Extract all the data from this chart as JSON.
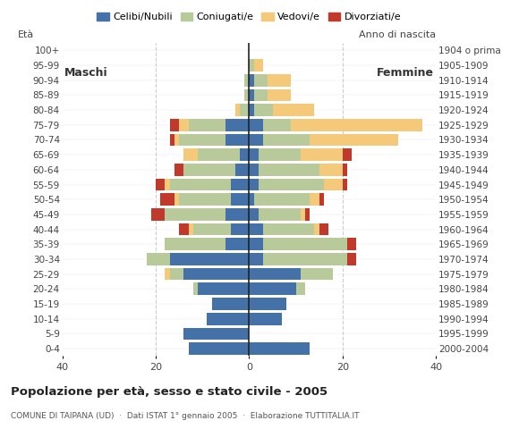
{
  "age_groups": [
    "0-4",
    "5-9",
    "10-14",
    "15-19",
    "20-24",
    "25-29",
    "30-34",
    "35-39",
    "40-44",
    "45-49",
    "50-54",
    "55-59",
    "60-64",
    "65-69",
    "70-74",
    "75-79",
    "80-84",
    "85-89",
    "90-94",
    "95-99",
    "100+"
  ],
  "birth_years": [
    "2000-2004",
    "1995-1999",
    "1990-1994",
    "1985-1989",
    "1980-1984",
    "1975-1979",
    "1970-1974",
    "1965-1969",
    "1960-1964",
    "1955-1959",
    "1950-1954",
    "1945-1949",
    "1940-1944",
    "1935-1939",
    "1930-1934",
    "1925-1929",
    "1920-1924",
    "1915-1919",
    "1910-1914",
    "1905-1909",
    "1904 o prima"
  ],
  "males": {
    "celibi": [
      13,
      14,
      9,
      8,
      11,
      14,
      17,
      5,
      4,
      5,
      4,
      4,
      3,
      2,
      5,
      5,
      0,
      0,
      0,
      0,
      0
    ],
    "coniugati": [
      0,
      0,
      0,
      0,
      1,
      3,
      5,
      13,
      8,
      13,
      11,
      13,
      11,
      9,
      10,
      8,
      2,
      1,
      1,
      0,
      0
    ],
    "vedovi": [
      0,
      0,
      0,
      0,
      0,
      1,
      0,
      0,
      1,
      0,
      1,
      1,
      0,
      3,
      1,
      2,
      1,
      0,
      0,
      0,
      0
    ],
    "divorziati": [
      0,
      0,
      0,
      0,
      0,
      0,
      0,
      0,
      2,
      3,
      3,
      2,
      2,
      0,
      1,
      2,
      0,
      0,
      0,
      0,
      0
    ]
  },
  "females": {
    "nubili": [
      13,
      0,
      7,
      8,
      10,
      11,
      3,
      3,
      3,
      2,
      1,
      2,
      2,
      2,
      3,
      3,
      1,
      1,
      1,
      0,
      0
    ],
    "coniugate": [
      0,
      0,
      0,
      0,
      2,
      7,
      18,
      18,
      11,
      9,
      12,
      14,
      13,
      9,
      10,
      6,
      4,
      3,
      3,
      1,
      0
    ],
    "vedove": [
      0,
      0,
      0,
      0,
      0,
      0,
      0,
      0,
      1,
      1,
      2,
      4,
      5,
      9,
      19,
      28,
      9,
      5,
      5,
      2,
      0
    ],
    "divorziate": [
      0,
      0,
      0,
      0,
      0,
      0,
      2,
      2,
      2,
      1,
      1,
      1,
      1,
      2,
      0,
      0,
      0,
      0,
      0,
      0,
      0
    ]
  },
  "colors": {
    "celibi": "#4472a8",
    "coniugati": "#b8c99a",
    "vedovi": "#f5c97a",
    "divorziati": "#c0392b"
  },
  "legend_labels": [
    "Celibi/Nubili",
    "Coniugati/e",
    "Vedovi/e",
    "Divorziati/e"
  ],
  "title": "Popolazione per età, sesso e stato civile - 2005",
  "subtitle": "COMUNE DI TAIPANA (UD)  ·  Dati ISTAT 1° gennaio 2005  ·  Elaborazione TUTTITALIA.IT",
  "xlim": 40,
  "bg_color": "#ffffff",
  "grid_color": "#cccccc"
}
